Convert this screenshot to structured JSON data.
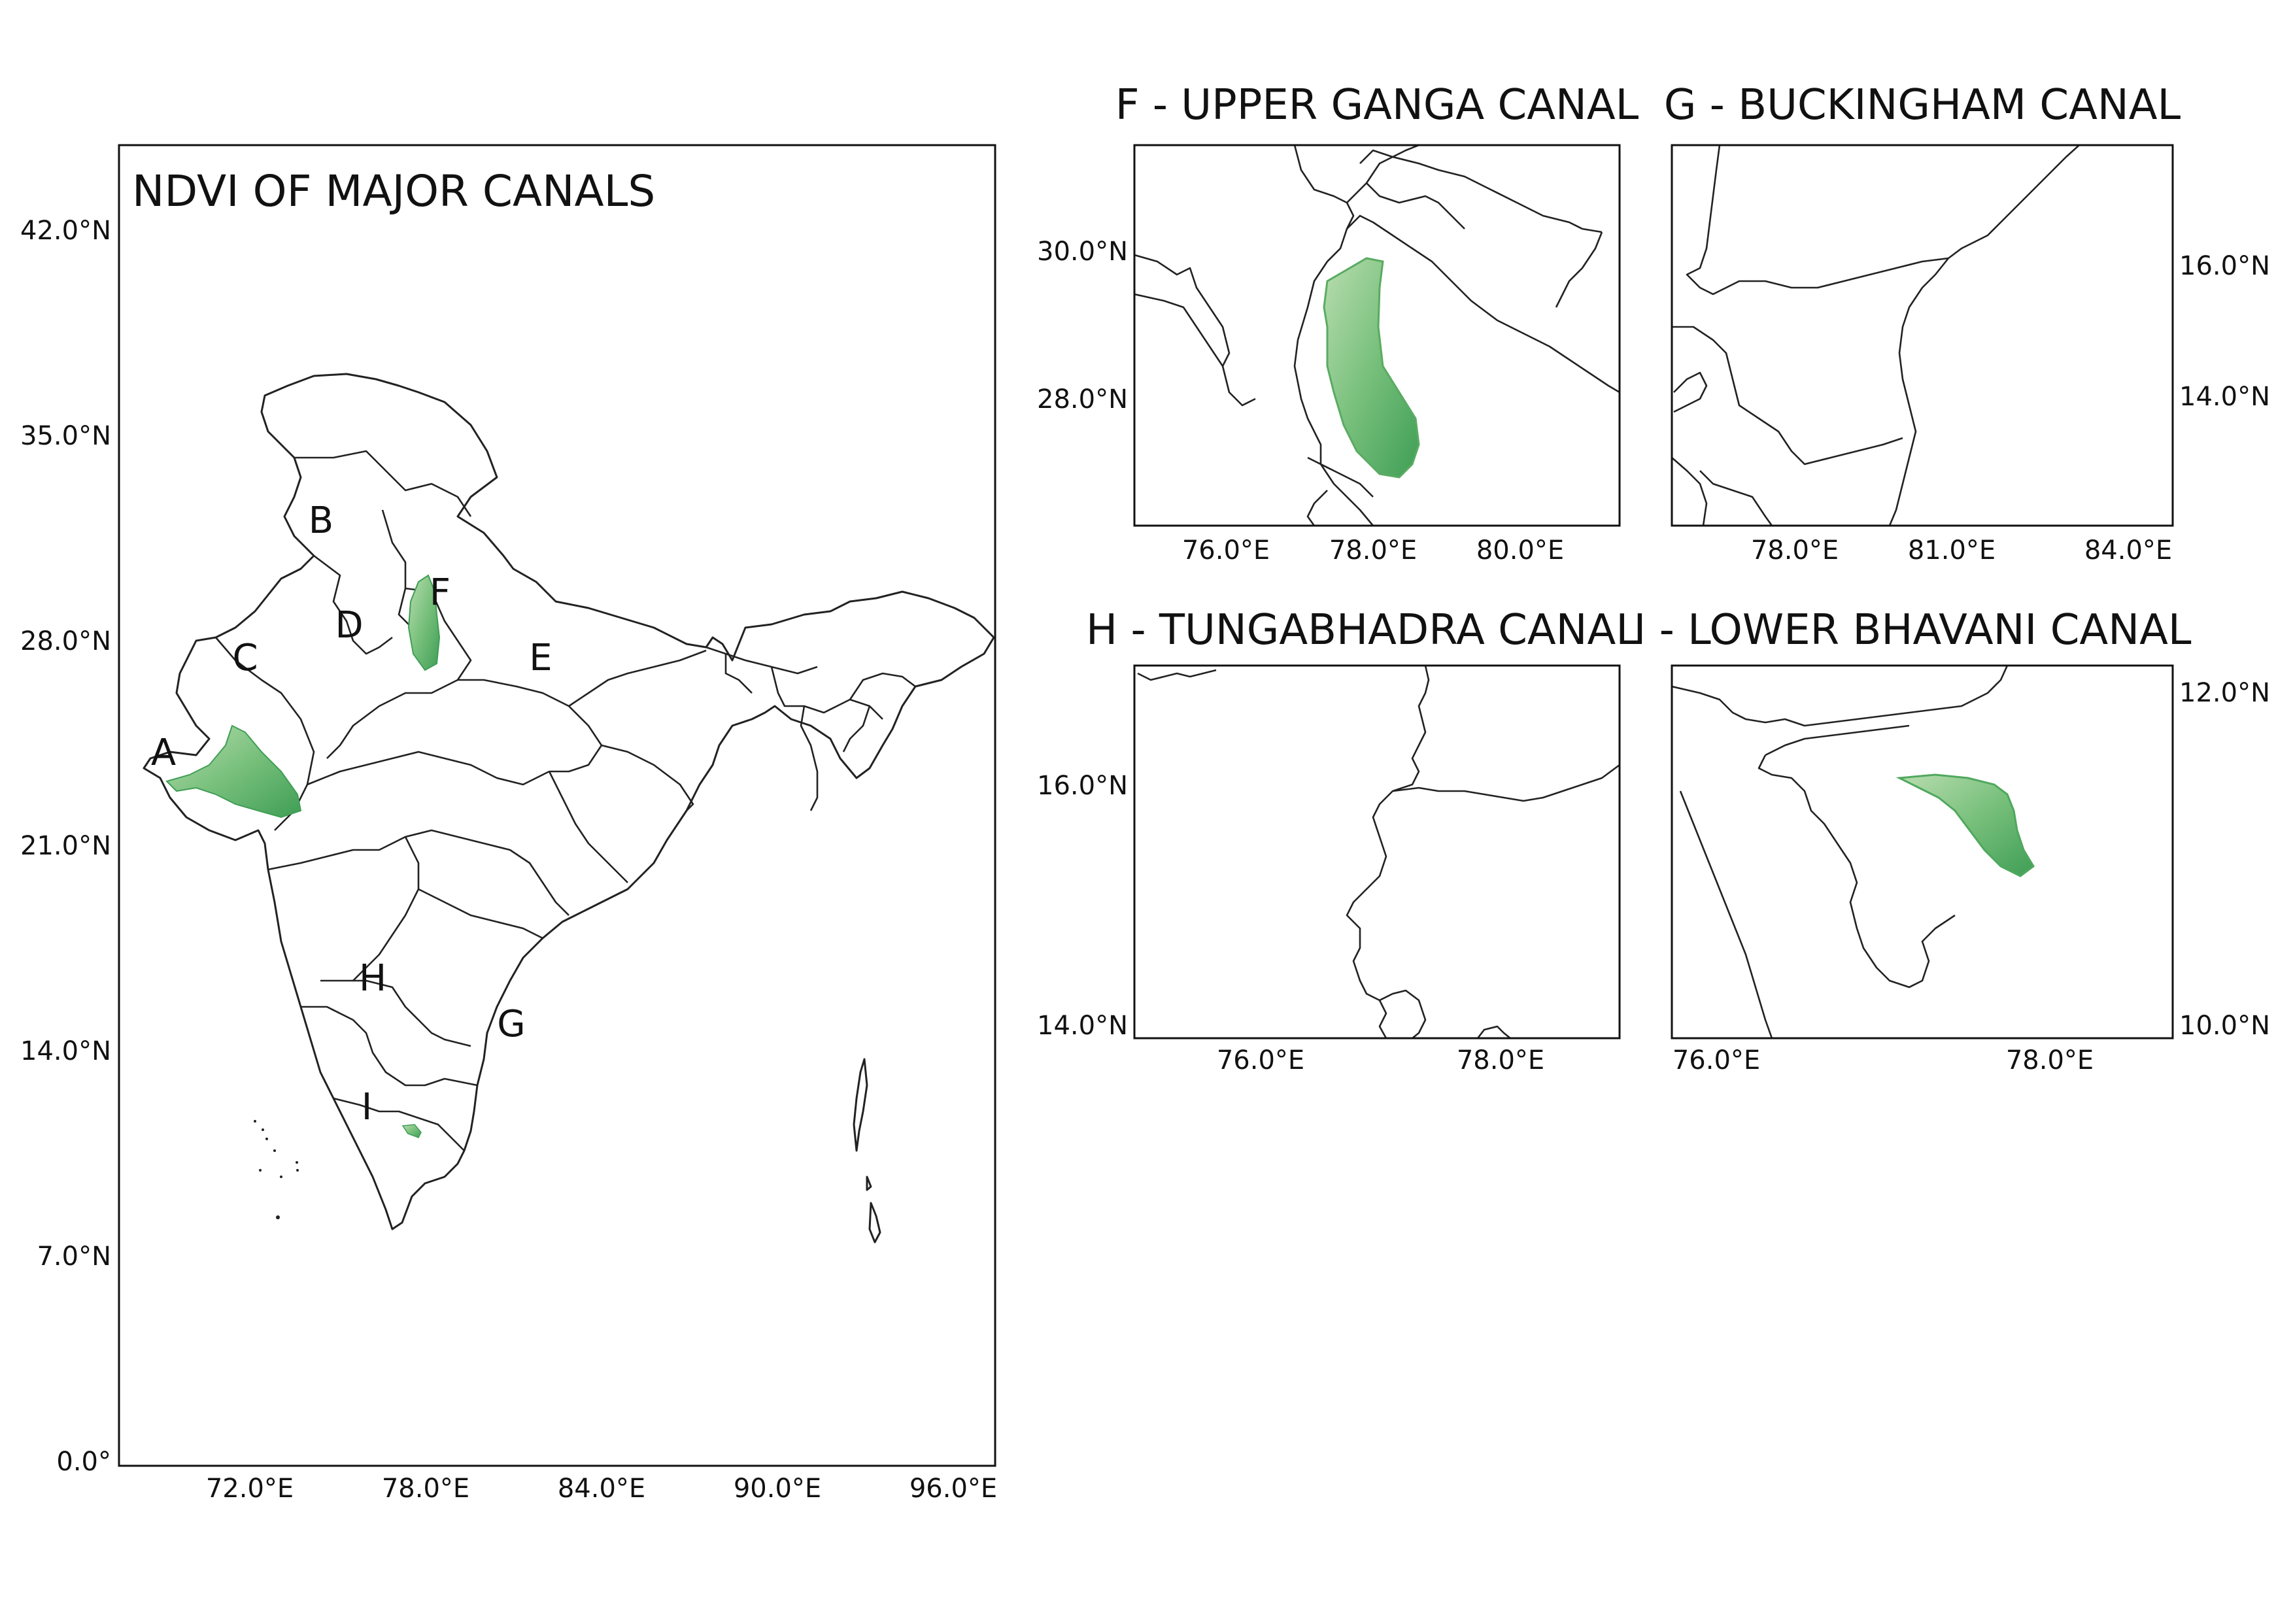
{
  "colors": {
    "ndvi_light": "#b9ddb0",
    "ndvi_mid": "#78c07c",
    "ndvi_dark": "#3f9e55",
    "border": "#222222"
  },
  "main_map": {
    "title": "NDVI OF MAJOR CANALS",
    "lat_ticks": [
      "42.0°N",
      "35.0°N",
      "28.0°N",
      "21.0°N",
      "14.0°N",
      "7.0°N",
      "0.0°"
    ],
    "lon_ticks": [
      "72.0°E",
      "78.0°E",
      "84.0°E",
      "90.0°E",
      "96.0°E"
    ],
    "labels": [
      "A",
      "B",
      "C",
      "D",
      "E",
      "F",
      "G",
      "H",
      "I"
    ]
  },
  "insets": {
    "f": {
      "title": "F - UPPER GANGA CANAL",
      "lat_ticks": [
        "30.0°N",
        "28.0°N"
      ],
      "lon_ticks": [
        "76.0°E",
        "78.0°E",
        "80.0°E"
      ]
    },
    "g": {
      "title": "G - BUCKINGHAM CANAL",
      "lat_ticks": [
        "16.0°N",
        "14.0°N"
      ],
      "lon_ticks": [
        "78.0°E",
        "81.0°E",
        "84.0°E"
      ]
    },
    "h": {
      "title": "H - TUNGABHADRA CANAL",
      "lat_ticks": [
        "16.0°N",
        "14.0°N"
      ],
      "lon_ticks": [
        "76.0°E",
        "78.0°E"
      ]
    },
    "i": {
      "title": "I - LOWER BHAVANI  CANAL",
      "lat_ticks": [
        "12.0°N",
        "10.0°N"
      ],
      "lon_ticks": [
        "76.0°E",
        "78.0°E"
      ]
    }
  }
}
